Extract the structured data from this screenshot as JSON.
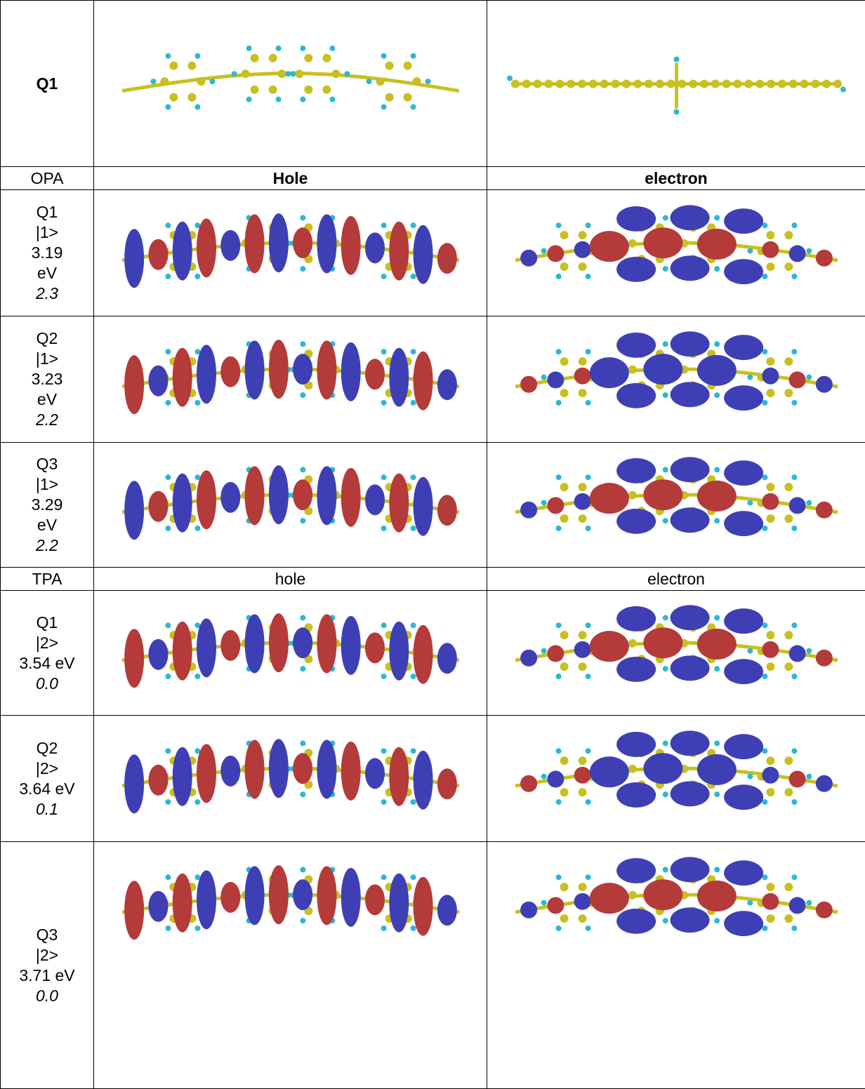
{
  "table": {
    "header": {
      "label": "Q1"
    },
    "sections": [
      {
        "label": "OPA",
        "hole": "Hole",
        "electron": "electron",
        "rows": [
          {
            "lines": [
              "Q1",
              "|1>",
              "3.19",
              "eV"
            ],
            "value": "2.3"
          },
          {
            "lines": [
              "Q2",
              "|1>",
              "3.23",
              "eV"
            ],
            "value": "2.2"
          },
          {
            "lines": [
              "Q3",
              "|1>",
              "3.29",
              "eV"
            ],
            "value": "2.2"
          }
        ]
      },
      {
        "label": "TPA",
        "hole": "hole",
        "electron": "electron",
        "rows": [
          {
            "lines": [
              "Q1",
              "|2>",
              "3.54 eV"
            ],
            "value": "0.0"
          },
          {
            "lines": [
              "Q2",
              "|2>",
              "3.64 eV"
            ],
            "value": "0.1"
          },
          {
            "lines": [
              "Q3",
              "|2>",
              "3.71 eV"
            ],
            "value": "0.0"
          }
        ]
      }
    ]
  }
}
